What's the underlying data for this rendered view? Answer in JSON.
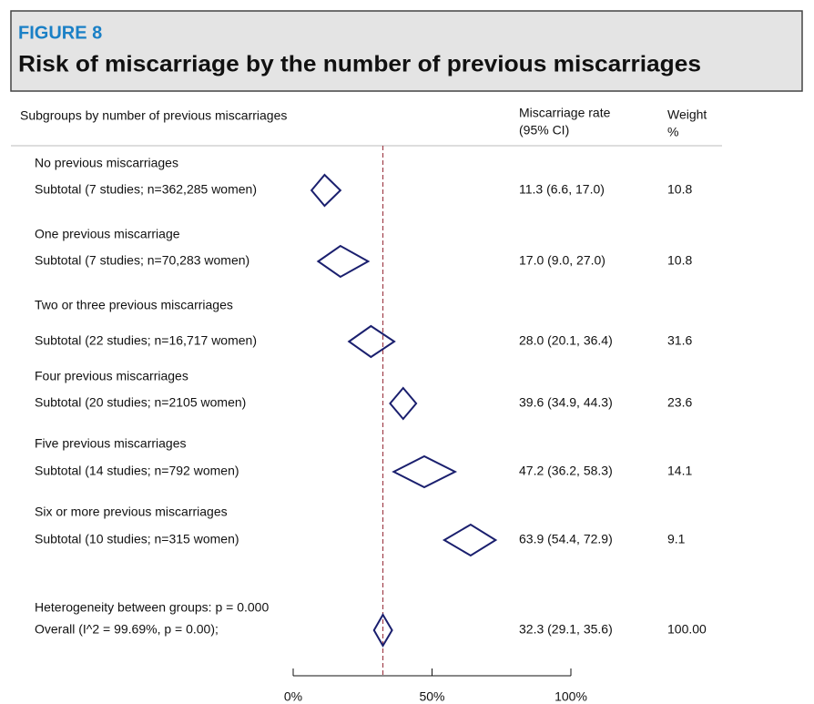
{
  "chart_data": {
    "type": "forest",
    "figure_label": "FIGURE 8",
    "title": "Risk of miscarriage by the number of previous miscarriages",
    "column_headers": {
      "subgroups": "Subgroups by number of previous miscarriages",
      "rate": [
        "Miscarriage rate",
        "(95% CI)"
      ],
      "weight": [
        "Weight",
        "%"
      ]
    },
    "groups": [
      "No previous miscarriages",
      "One previous miscarriage",
      "Two or three previous miscarriages",
      "Four previous miscarriages",
      "Five previous miscarriages",
      "Six or more previous miscarriages"
    ],
    "subtotal_labels": [
      "Subtotal (7 studies; n=362,285 women)",
      "Subtotal (7 studies; n=70,283 women)",
      "Subtotal (22 studies; n=16,717 women)",
      "Subtotal (20 studies; n=2105 women)",
      "Subtotal (14 studies; n=792 women)",
      "Subtotal (10 studies; n=315 women)"
    ],
    "values": [
      11.3,
      17.0,
      28.0,
      39.6,
      47.2,
      63.9
    ],
    "lower": [
      6.6,
      9.0,
      20.1,
      34.9,
      36.2,
      54.4
    ],
    "upper": [
      17.0,
      27.0,
      36.4,
      44.3,
      58.3,
      72.9
    ],
    "value_labels": [
      "11.3 (6.6, 17.0)",
      "17.0 (9.0, 27.0)",
      "28.0 (20.1, 36.4)",
      "39.6 (34.9, 44.3)",
      "47.2 (36.2, 58.3)",
      "63.9 (54.4, 72.9)"
    ],
    "weights": [
      "10.8",
      "10.8",
      "31.6",
      "23.6",
      "14.1",
      "9.1"
    ],
    "heterogeneity": "Heterogeneity between groups: p = 0.000",
    "overall": {
      "label": "Overall  (I^2 = 99.69%, p = 0.00);",
      "value": 32.3,
      "lower": 29.1,
      "upper": 35.6,
      "value_label": "32.3 (29.1, 35.6)",
      "weight": "100.00"
    },
    "xlim": [
      0,
      100
    ],
    "xticks": [
      {
        "value": 0,
        "label": "0%"
      },
      {
        "value": 50,
        "label": "50%"
      },
      {
        "value": 100,
        "label": "100%"
      }
    ],
    "color": "#1a1f6e",
    "reference_color": "#a0404a"
  }
}
